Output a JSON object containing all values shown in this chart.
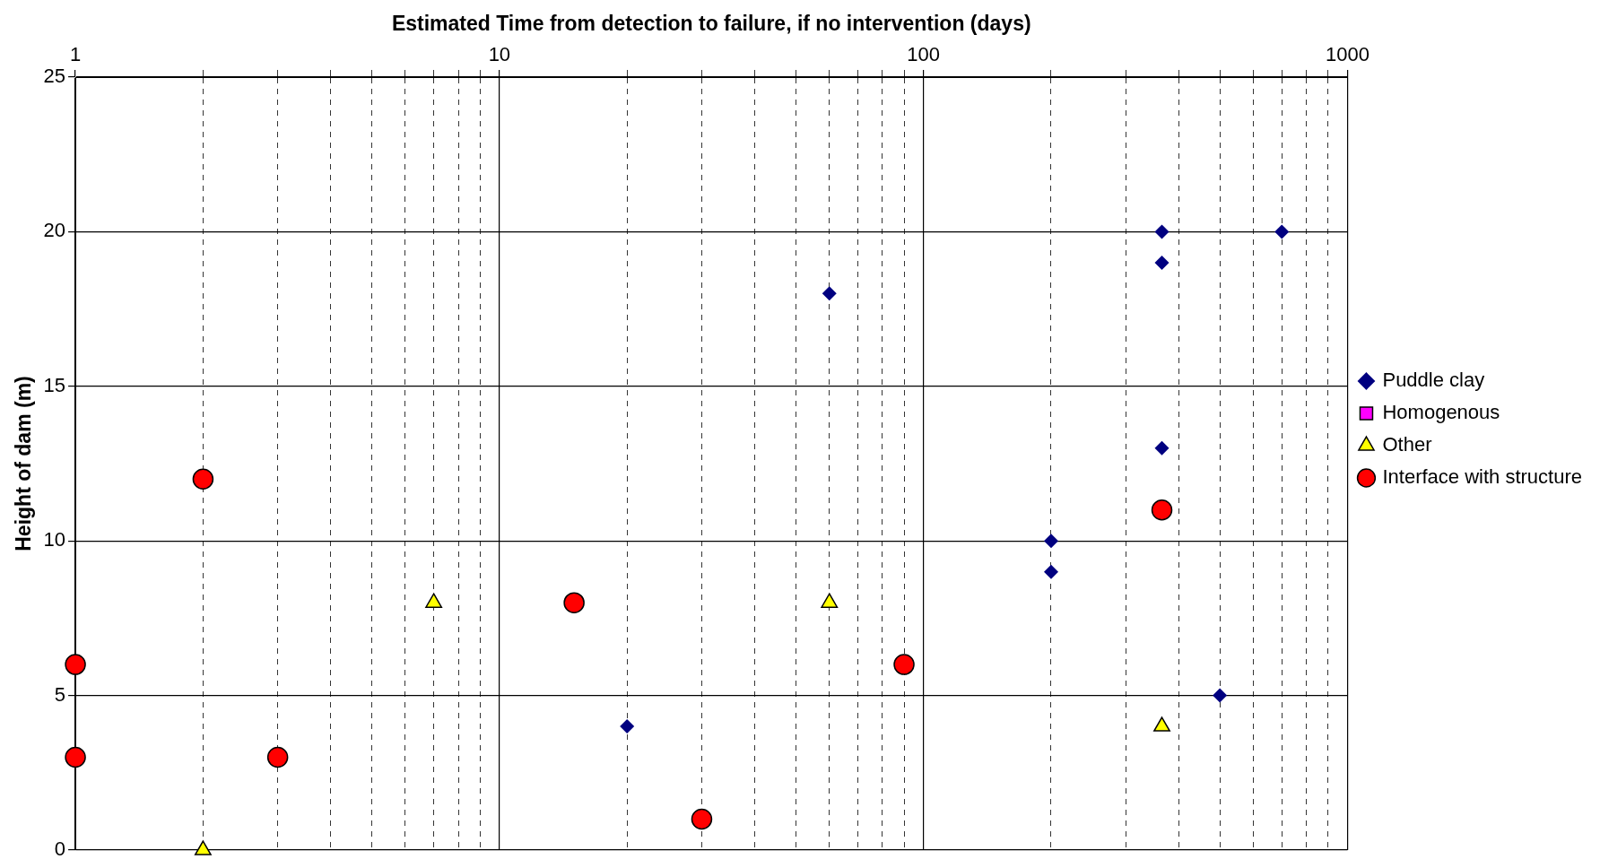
{
  "chart_data": {
    "type": "scatter",
    "xlabel": "Estimated Time from detection to failure, if no intervention (days)",
    "ylabel": "Height of dam (m)",
    "log": "x",
    "xlim": [
      1,
      1000
    ],
    "ylim": [
      0,
      25
    ],
    "xticks": [
      1,
      {
        "value": 2,
        "label": null
      },
      {
        "value": 3,
        "label": null
      },
      {
        "value": 4,
        "label": null
      },
      {
        "value": 5,
        "label": null
      },
      {
        "value": 6,
        "label": null
      },
      {
        "value": 7,
        "label": null
      },
      {
        "value": 8,
        "label": null
      },
      {
        "value": 9,
        "label": null
      },
      10,
      {
        "value": 20,
        "label": null
      },
      {
        "value": 30,
        "label": null
      },
      {
        "value": 40,
        "label": null
      },
      {
        "value": 50,
        "label": null
      },
      {
        "value": 60,
        "label": null
      },
      {
        "value": 70,
        "label": null
      },
      {
        "value": 80,
        "label": null
      },
      {
        "value": 90,
        "label": null
      },
      100,
      {
        "value": 200,
        "label": null
      },
      {
        "value": 300,
        "label": null
      },
      {
        "value": 400,
        "label": null
      },
      {
        "value": 500,
        "label": null
      },
      {
        "value": 600,
        "label": null
      },
      {
        "value": 700,
        "label": null
      },
      {
        "value": 800,
        "label": null
      },
      {
        "value": 900,
        "label": null
      },
      1000
    ],
    "yticks": [
      0,
      5,
      10,
      15,
      20,
      25
    ],
    "grid": true,
    "legend": "right",
    "series": [
      {
        "name": "Puddle clay",
        "color": "#000080",
        "marker": "diamond",
        "x": [
          20,
          60,
          200,
          200,
          365,
          365,
          365,
          500,
          700
        ],
        "values": [
          4,
          18,
          10,
          9,
          20,
          19,
          13,
          5,
          20
        ]
      },
      {
        "name": "Homogenous",
        "color": "#ff00ff",
        "marker": "square"
      },
      {
        "name": "Other",
        "color": "#ffff00",
        "marker": "triangle",
        "x": [
          2,
          7,
          60,
          365
        ],
        "values": [
          0,
          8,
          8,
          4
        ]
      },
      {
        "name": "Interface with structure",
        "color": "#ff0000",
        "marker": "circle",
        "x": [
          1,
          1,
          2,
          3,
          15.0,
          30,
          90,
          365
        ],
        "values": [
          6,
          3,
          12,
          3,
          8,
          1,
          6,
          11
        ]
      }
    ]
  }
}
